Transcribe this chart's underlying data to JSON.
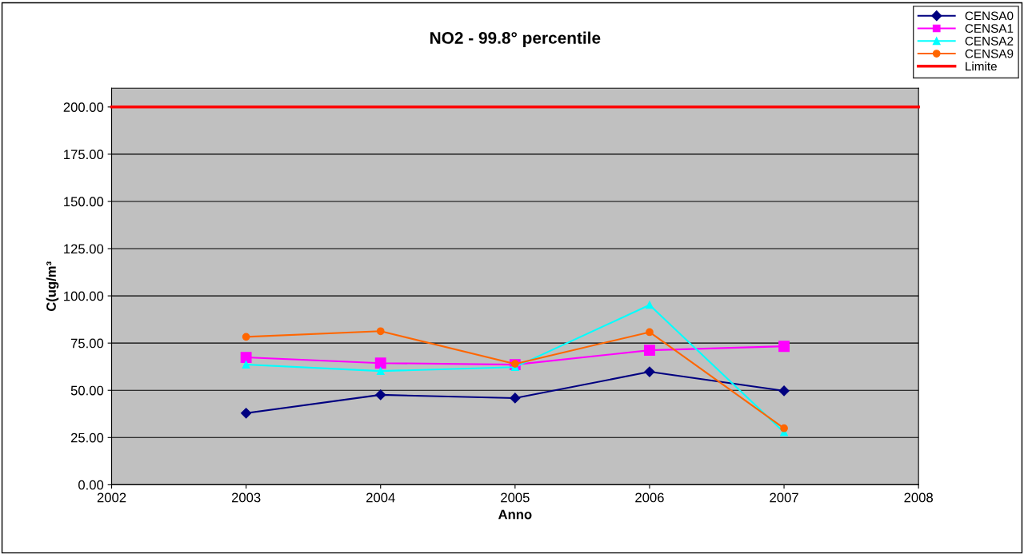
{
  "chart_data": {
    "type": "line",
    "title": "NO2 - 99.8° percentile",
    "xlabel": "Anno",
    "ylabel": "C(ug/m³",
    "x": [
      2003,
      2004,
      2005,
      2006,
      2007
    ],
    "series": [
      {
        "name": "CENSA0",
        "color": "#000080",
        "marker": "diamond",
        "values": [
          37.9,
          47.6,
          45.9,
          59.8,
          49.7
        ]
      },
      {
        "name": "CENSA1",
        "color": "#ff00ff",
        "marker": "square",
        "values": [
          67.4,
          64.4,
          63.6,
          71.2,
          73.3
        ]
      },
      {
        "name": "CENSA2",
        "color": "#00ffff",
        "marker": "triangle",
        "values": [
          63.6,
          60.2,
          62.3,
          95.2,
          27.8
        ]
      },
      {
        "name": "CENSA9",
        "color": "#ff6600",
        "marker": "circle",
        "values": [
          78.3,
          81.3,
          64.0,
          80.8,
          29.9
        ]
      },
      {
        "name": "Limite",
        "color": "#ff0000",
        "marker": "none",
        "x": [
          2002,
          2008
        ],
        "values": [
          200,
          200
        ]
      }
    ],
    "xlim": [
      2002,
      2008
    ],
    "xticks": [
      2002,
      2003,
      2004,
      2005,
      2006,
      2007,
      2008
    ],
    "ylim": [
      0,
      210
    ],
    "yticks": [
      {
        "value": 0,
        "label": "0.00"
      },
      {
        "value": 25,
        "label": "25.00"
      },
      {
        "value": 50,
        "label": "50.00"
      },
      {
        "value": 75,
        "label": "75.00"
      },
      {
        "value": 100,
        "label": "100.00"
      },
      {
        "value": 125,
        "label": "125.00"
      },
      {
        "value": 150,
        "label": "150.00"
      },
      {
        "value": 175,
        "label": "175.00"
      },
      {
        "value": 200,
        "label": "200.00"
      }
    ],
    "grid": "y",
    "legend": "top right"
  }
}
